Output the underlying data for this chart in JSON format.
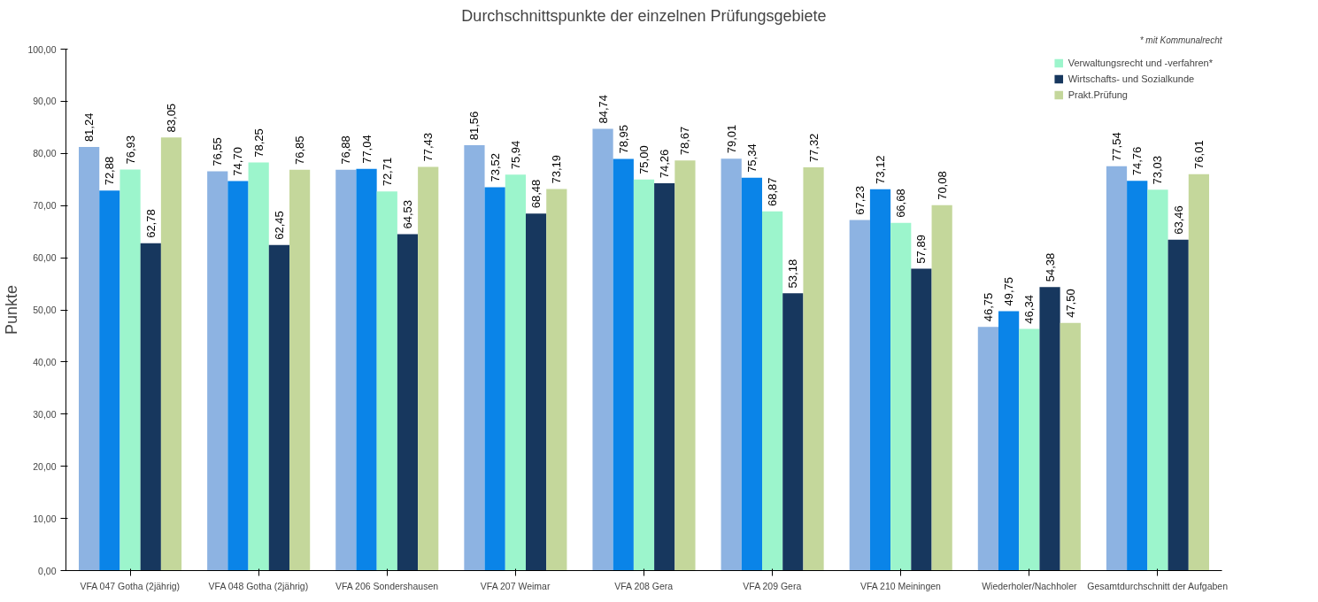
{
  "chart_data": {
    "type": "bar",
    "title": "Durchschnittspunkte der einzelnen Prüfungsgebiete",
    "ylabel": "Punkte",
    "annotations": [
      "* mit Kommunalrecht"
    ],
    "categories": [
      "VFA 047 Gotha (2jährig)",
      "VFA 048 Gotha (2jährig)",
      "VFA 206 Sondershausen",
      "VFA 207 Weimar",
      "VFA 208 Gera",
      "VFA 209 Gera",
      "VFA 210 Meiningen",
      "Wiederholer/Nachholer",
      "Gesamtdurchschnitt der Aufgaben"
    ],
    "series": [
      {
        "color": "#8db3e2",
        "values": [
          81.24,
          76.55,
          76.88,
          81.56,
          84.74,
          79.01,
          67.23,
          46.75,
          77.54
        ],
        "value_labels": [
          "81,24",
          "76,55",
          "76,88",
          "81,56",
          "84,74",
          "79,01",
          "67,23",
          "46,75",
          "77,54"
        ]
      },
      {
        "color": "#0a84e8",
        "values": [
          72.88,
          74.7,
          77.04,
          73.52,
          78.95,
          75.34,
          73.12,
          49.75,
          74.76
        ],
        "value_labels": [
          "72,88",
          "74,70",
          "77,04",
          "73,52",
          "78,95",
          "75,34",
          "73,12",
          "49,75",
          "74,76"
        ]
      },
      {
        "name": "Verwaltungsrecht und -verfahren*",
        "color": "#9cf5cc",
        "values": [
          76.93,
          78.25,
          72.71,
          75.94,
          75.0,
          68.87,
          66.68,
          46.34,
          73.03
        ],
        "value_labels": [
          "76,93",
          "78,25",
          "72,71",
          "75,94",
          "75,00",
          "68,87",
          "66,68",
          "46,34",
          "73,03"
        ]
      },
      {
        "name": "Wirtschafts- und Sozialkunde",
        "color": "#17375e",
        "values": [
          62.78,
          62.45,
          64.53,
          68.48,
          74.26,
          53.18,
          57.89,
          54.38,
          63.46
        ],
        "value_labels": [
          "62,78",
          "62,45",
          "64,53",
          "68,48",
          "74,26",
          "53,18",
          "57,89",
          "54,38",
          "63,46"
        ]
      },
      {
        "name": "Prakt.Prüfung",
        "color": "#c4d79b",
        "values": [
          83.05,
          76.85,
          77.43,
          73.19,
          78.67,
          77.32,
          70.08,
          47.5,
          76.01
        ],
        "value_labels": [
          "83,05",
          "76,85",
          "77,43",
          "73,19",
          "78,67",
          "77,32",
          "70,08",
          "47,50",
          "76,01"
        ]
      }
    ],
    "ylim": [
      0,
      100
    ],
    "yticks": [
      {
        "value": 0,
        "label": "0,00"
      },
      {
        "value": 10,
        "label": "10,00"
      },
      {
        "value": 20,
        "label": "20,00"
      },
      {
        "value": 30,
        "label": "30,00"
      },
      {
        "value": 40,
        "label": "40,00"
      },
      {
        "value": 50,
        "label": "50,00"
      },
      {
        "value": 60,
        "label": "60,00"
      },
      {
        "value": 70,
        "label": "70,00"
      },
      {
        "value": 80,
        "label": "80,00"
      },
      {
        "value": 90,
        "label": "90,00"
      },
      {
        "value": 100,
        "label": "100,00"
      }
    ],
    "grid": false,
    "legend": "top right"
  }
}
